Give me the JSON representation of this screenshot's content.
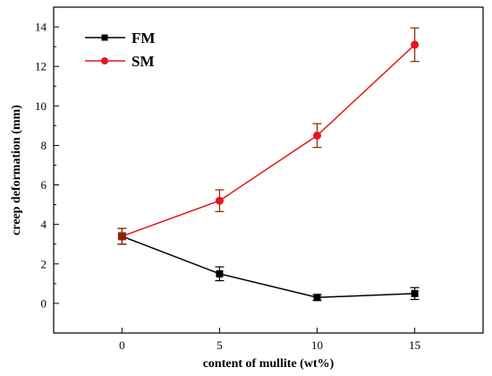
{
  "chart_data": {
    "type": "line",
    "xlabel": "content of mullite (wt%)",
    "ylabel": "creep deformation (mm)",
    "x": [
      0,
      5,
      10,
      15
    ],
    "x_ticks": [
      0,
      5,
      10,
      15
    ],
    "y_ticks": [
      0,
      2,
      4,
      6,
      8,
      10,
      12,
      14
    ],
    "xlim": [
      -3.5,
      18.5
    ],
    "ylim": [
      -1.5,
      15
    ],
    "grid": false,
    "legend_position": "top-left",
    "series": [
      {
        "name": "FM",
        "color": "#000000",
        "marker": "square",
        "values": [
          3.4,
          1.5,
          0.3,
          0.5
        ],
        "errors": [
          0.4,
          0.35,
          0.15,
          0.3
        ]
      },
      {
        "name": "SM",
        "color": "#e8141c",
        "error_color": "#8b2500",
        "marker": "circle",
        "values": [
          3.4,
          5.2,
          8.5,
          13.1
        ],
        "errors": [
          0.4,
          0.55,
          0.6,
          0.85
        ]
      }
    ]
  }
}
